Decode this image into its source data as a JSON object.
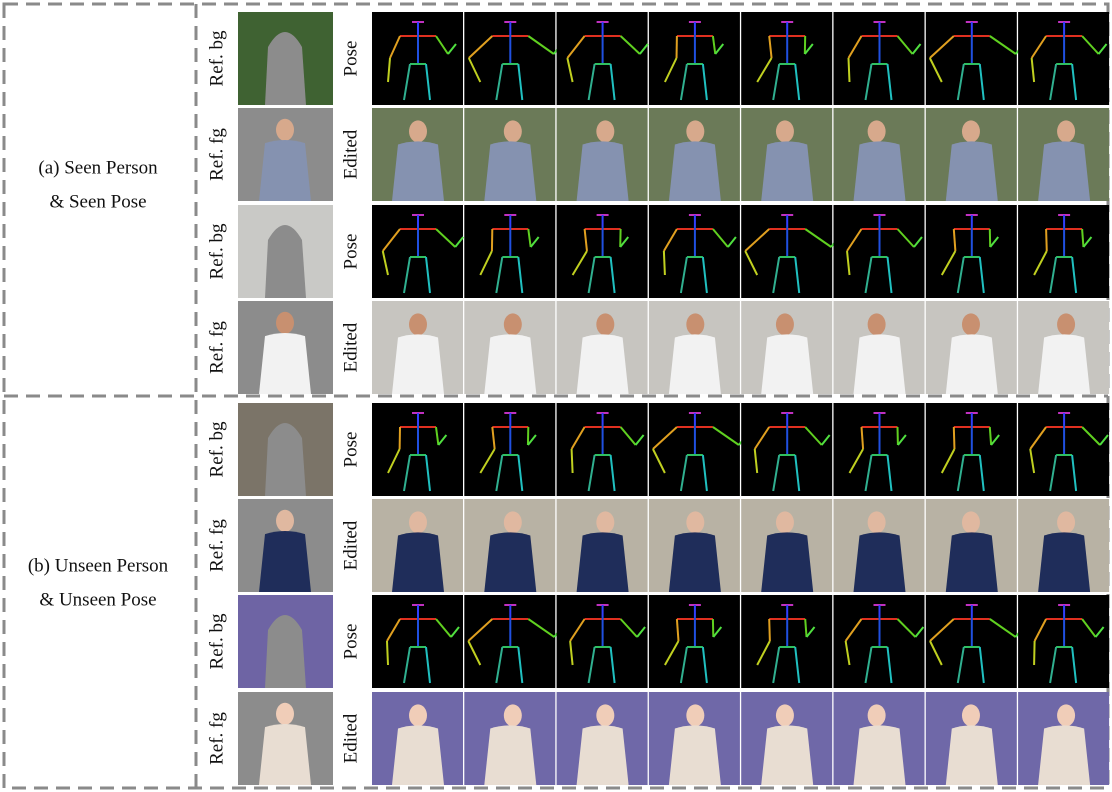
{
  "sections": [
    {
      "label_lines": [
        "(a) Seen Person",
        "& Seen Pose"
      ],
      "rows": [
        {
          "ref": "Ref. bg",
          "strip": "Pose"
        },
        {
          "ref": "Ref. fg",
          "strip": "Edited"
        },
        {
          "ref": "Ref. bg",
          "strip": "Pose"
        },
        {
          "ref": "Ref. fg",
          "strip": "Edited"
        }
      ]
    },
    {
      "label_lines": [
        "(b) Unseen Person",
        "& Unseen Pose"
      ],
      "rows": [
        {
          "ref": "Ref. bg",
          "strip": "Pose"
        },
        {
          "ref": "Ref. fg",
          "strip": "Edited"
        },
        {
          "ref": "Ref. bg",
          "strip": "Pose"
        },
        {
          "ref": "Ref. fg",
          "strip": "Edited"
        }
      ]
    }
  ]
}
